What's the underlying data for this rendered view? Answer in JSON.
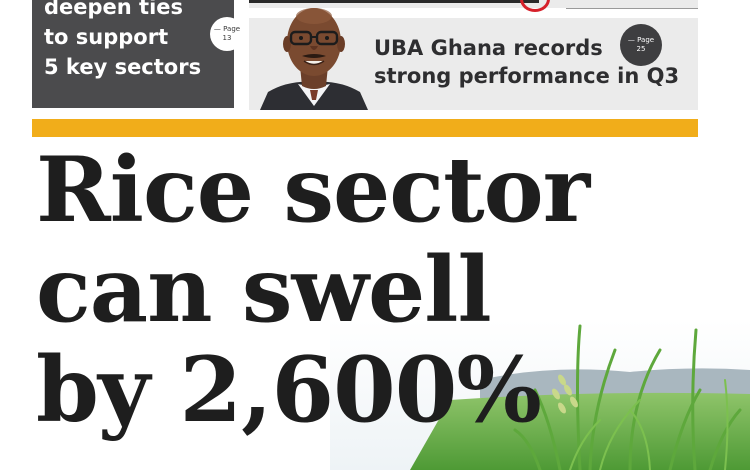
{
  "teaser_left": {
    "lines": [
      "deepen ties",
      "to support",
      "5 key sectors"
    ],
    "page_label": "— Page",
    "page_number": "13"
  },
  "teaser_right": {
    "headline_lines": [
      "UBA Ghana records",
      "strong performance in Q3"
    ],
    "page_label": "— Page",
    "page_number": "25"
  },
  "main": {
    "headline_lines": [
      "Rice sector",
      "can swell",
      "by 2,600%"
    ]
  },
  "colors": {
    "accent_bar": "#f1ad1a",
    "teaser_box": "#4b4b4d",
    "teaser_right_bg": "#ebebeb",
    "headline_text": "#1e1e1e"
  }
}
